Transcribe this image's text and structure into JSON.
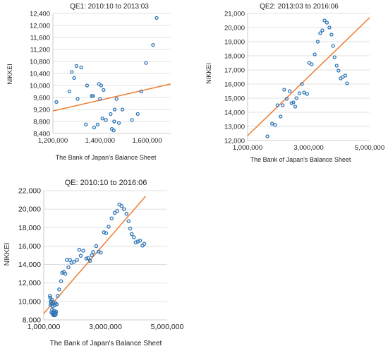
{
  "chart_data": [
    {
      "type": "scatter",
      "title": "QE1: 2010:10 to 2013:03",
      "xlabel": "The Bank of Japan's Balance Sheet",
      "ylabel": "NIKKEI",
      "xlim": [
        1200000,
        1700000
      ],
      "ylim": [
        8400,
        12400
      ],
      "xticks": [
        1200000,
        1400000,
        1600000
      ],
      "xtick_labels": [
        "1,200,000",
        "1,400,000",
        "1,600,000"
      ],
      "yticks": [
        8400,
        8800,
        9200,
        9600,
        10000,
        10400,
        10800,
        11200,
        11600,
        12000,
        12400
      ],
      "ytick_labels": [
        "8,400",
        "8,800",
        "9,200",
        "9,600",
        "10,000",
        "10,400",
        "10,800",
        "11,200",
        "11,600",
        "12,000",
        "12,400"
      ],
      "grid": "horizontal",
      "x": [
        1215000,
        1270000,
        1280000,
        1290000,
        1300000,
        1305000,
        1320000,
        1340000,
        1345000,
        1365000,
        1370000,
        1375000,
        1390000,
        1395000,
        1400000,
        1405000,
        1410000,
        1415000,
        1425000,
        1445000,
        1450000,
        1458000,
        1460000,
        1462000,
        1470000,
        1480000,
        1495000,
        1535000,
        1560000,
        1575000,
        1595000,
        1625000,
        1640000
      ],
      "y": [
        9450,
        9800,
        10450,
        10250,
        10650,
        9550,
        10600,
        8700,
        10000,
        9650,
        9650,
        8600,
        8700,
        10050,
        9550,
        10000,
        8900,
        9850,
        8850,
        9050,
        8550,
        8500,
        8800,
        9200,
        9550,
        8750,
        9200,
        8850,
        9050,
        9800,
        10750,
        11350,
        12250
      ],
      "fit": {
        "x": [
          1200000,
          1700000
        ],
        "y": [
          9150,
          10050
        ]
      }
    },
    {
      "type": "scatter",
      "title": "QE2: 2013:03 to 2016:06",
      "xlabel": "The Bank of Japan's Balance Sheet",
      "ylabel": "NIKKEI",
      "xlim": [
        1000000,
        5000000
      ],
      "ylim": [
        12000,
        21000
      ],
      "xticks": [
        1000000,
        3000000,
        5000000
      ],
      "xtick_labels": [
        "1,000,000",
        "3,000,000",
        "5,000,000"
      ],
      "yticks": [
        12000,
        13000,
        14000,
        15000,
        16000,
        17000,
        18000,
        19000,
        20000,
        21000
      ],
      "ytick_labels": [
        "12,000",
        "13,000",
        "14,000",
        "15,000",
        "16,000",
        "17,000",
        "18,000",
        "19,000",
        "20,000",
        "21,000"
      ],
      "grid": "horizontal",
      "x": [
        1650000,
        1800000,
        1900000,
        1980000,
        2080000,
        2150000,
        2200000,
        2280000,
        2380000,
        2440000,
        2500000,
        2560000,
        2600000,
        2700000,
        2780000,
        2850000,
        2950000,
        3020000,
        3100000,
        3200000,
        3300000,
        3380000,
        3450000,
        3520000,
        3600000,
        3680000,
        3750000,
        3800000,
        3850000,
        3920000,
        3980000,
        4050000,
        4120000,
        4200000,
        4260000
      ],
      "y": [
        12300,
        13200,
        13100,
        14500,
        13700,
        14500,
        15600,
        14950,
        15500,
        14650,
        14700,
        14400,
        15000,
        15350,
        16000,
        15400,
        15300,
        17500,
        17400,
        18100,
        19000,
        19600,
        19800,
        20500,
        20350,
        20000,
        19500,
        18700,
        17900,
        17300,
        16950,
        16400,
        16500,
        16600,
        16050
      ],
      "fit": {
        "x": [
          1000000,
          5000000
        ],
        "y": [
          12350,
          20700
        ]
      }
    },
    {
      "type": "scatter",
      "title": "QE: 2010:10 to 2016:06",
      "xlabel": "The Bank of Japan's Balance Sheet",
      "ylabel": "NIKKEI",
      "xlim": [
        1000000,
        5000000
      ],
      "ylim": [
        8000,
        22000
      ],
      "xticks": [
        1000000,
        3000000,
        5000000
      ],
      "xtick_labels": [
        "1,000,000",
        "3,000,000",
        "5,000,000"
      ],
      "yticks": [
        8000,
        10000,
        12000,
        14000,
        16000,
        18000,
        20000,
        22000
      ],
      "ytick_labels": [
        "8,000",
        "10,000",
        "12,000",
        "14,000",
        "16,000",
        "18,000",
        "20,000",
        "22,000"
      ],
      "grid": "horizontal",
      "x": [
        1200000,
        1210000,
        1220000,
        1230000,
        1240000,
        1250000,
        1260000,
        1270000,
        1280000,
        1290000,
        1300000,
        1310000,
        1320000,
        1330000,
        1340000,
        1350000,
        1360000,
        1370000,
        1380000,
        1390000,
        1400000,
        1420000,
        1450000,
        1500000,
        1560000,
        1600000,
        1650000,
        1700000,
        1750000,
        1800000,
        1850000,
        1900000,
        1980000,
        2080000,
        2150000,
        2200000,
        2280000,
        2380000,
        2440000,
        2500000,
        2560000,
        2600000,
        2700000,
        2780000,
        2850000,
        2950000,
        3020000,
        3100000,
        3200000,
        3300000,
        3380000,
        3450000,
        3520000,
        3600000,
        3680000,
        3750000,
        3800000,
        3850000,
        3920000,
        3980000,
        4050000,
        4120000,
        4200000,
        4260000
      ],
      "y": [
        10600,
        10400,
        9600,
        10000,
        9800,
        8800,
        10200,
        9100,
        8700,
        9500,
        8600,
        9900,
        8500,
        9000,
        8800,
        9600,
        8500,
        8800,
        9800,
        8600,
        8900,
        9700,
        10600,
        11300,
        12200,
        13100,
        13200,
        13000,
        14500,
        13700,
        14500,
        14200,
        14300,
        14500,
        15600,
        14950,
        15500,
        14650,
        14700,
        14400,
        15000,
        15350,
        16000,
        15400,
        15300,
        17500,
        17400,
        18100,
        19000,
        19600,
        19800,
        20500,
        20350,
        20000,
        19500,
        18700,
        17900,
        17300,
        16950,
        16400,
        16500,
        16600,
        16050,
        16250
      ],
      "fit": {
        "x": [
          1000000,
          4300000
        ],
        "y": [
          8700,
          21400
        ]
      }
    }
  ]
}
